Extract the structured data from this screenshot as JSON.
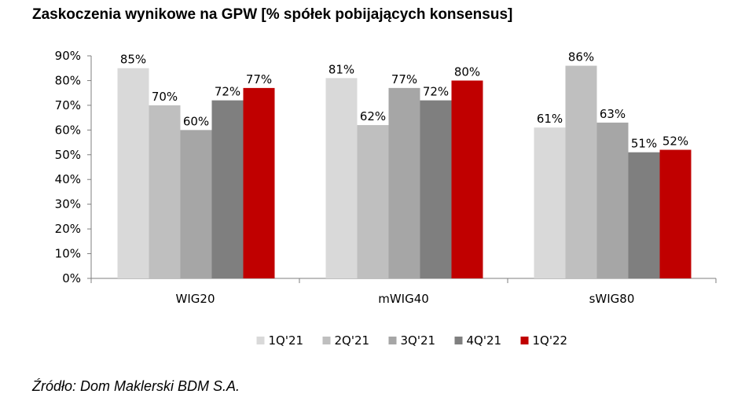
{
  "title": "Zaskoczenia wynikowe na GPW [% spółek pobijających konsensus]",
  "source": "Źródło: Dom Maklerski BDM S.A.",
  "chart_data": {
    "type": "bar",
    "categories": [
      "WIG20",
      "mWIG40",
      "sWIG80"
    ],
    "series": [
      {
        "name": "1Q'21",
        "values": [
          85,
          81,
          61
        ],
        "color": "#d9d9d9"
      },
      {
        "name": "2Q'21",
        "values": [
          70,
          62,
          86
        ],
        "color": "#bfbfbf"
      },
      {
        "name": "3Q'21",
        "values": [
          60,
          77,
          63
        ],
        "color": "#a6a6a6"
      },
      {
        "name": "4Q'21",
        "values": [
          72,
          72,
          51
        ],
        "color": "#7f7f7f"
      },
      {
        "name": "1Q'22",
        "values": [
          77,
          80,
          52
        ],
        "color": "#c00000"
      }
    ],
    "ylim": [
      0,
      90
    ],
    "yticks": [
      0,
      10,
      20,
      30,
      40,
      50,
      60,
      70,
      80,
      90
    ],
    "tick_suffix": "%",
    "legend": "bottom",
    "grid": false
  }
}
